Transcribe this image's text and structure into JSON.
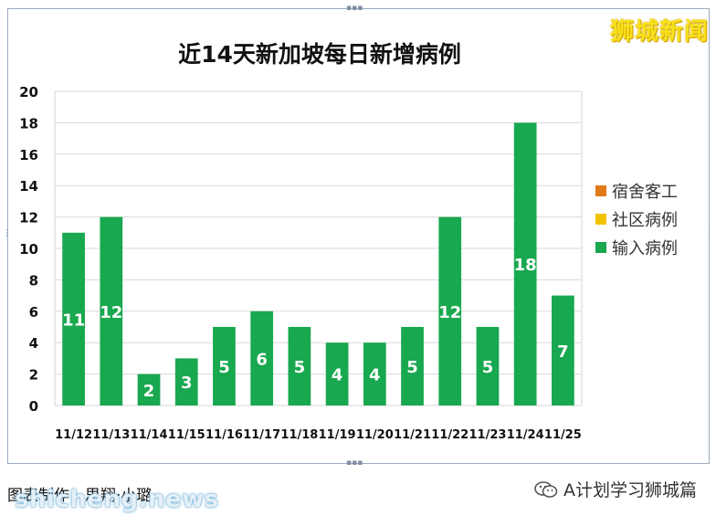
{
  "brand_label": "狮城新闻",
  "credit_text": "图表制作：思翔·小璐",
  "watermark_text": "shicheng.news",
  "account_text": "A计划学习狮城篇",
  "icons": {
    "wechat": "wechat-icon"
  },
  "chart_data": {
    "type": "bar",
    "title": "近14天新加坡每日新增病例",
    "categories": [
      "11/12",
      "11/13",
      "11/14",
      "11/15",
      "11/16",
      "11/17",
      "11/18",
      "11/19",
      "11/20",
      "11/21",
      "11/22",
      "11/23",
      "11/24",
      "11/25"
    ],
    "series": [
      {
        "name": "宿舍客工",
        "color": "#e07b18",
        "values": [
          0,
          0,
          0,
          0,
          0,
          0,
          0,
          0,
          0,
          0,
          0,
          0,
          0,
          0
        ]
      },
      {
        "name": "社区病例",
        "color": "#f2c300",
        "values": [
          0,
          0,
          0,
          0,
          0,
          0,
          0,
          0,
          0,
          0,
          0,
          0,
          0,
          0
        ]
      },
      {
        "name": "输入病例",
        "color": "#18a84f",
        "values": [
          11,
          12,
          2,
          3,
          5,
          6,
          5,
          4,
          4,
          5,
          12,
          5,
          18,
          7
        ]
      }
    ],
    "yticks": [
      0,
      2,
      4,
      6,
      8,
      10,
      12,
      14,
      16,
      18,
      20
    ],
    "ylim": [
      0,
      20
    ],
    "grid": true,
    "legend": "right",
    "data_labels": true
  }
}
